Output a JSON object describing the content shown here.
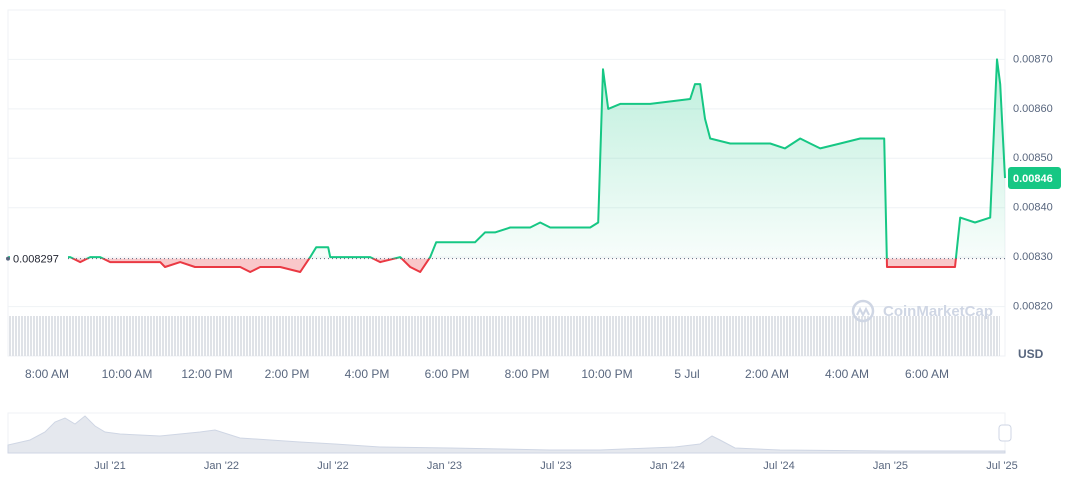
{
  "chart_data": {
    "type": "line",
    "x": [
      7.03,
      8.58,
      8.83,
      9.08,
      9.33,
      9.58,
      10.08,
      10.83,
      10.95,
      11.33,
      11.7,
      12.83,
      13.08,
      13.33,
      13.83,
      14.33,
      14.58,
      14.73,
      15.03,
      15.08,
      16.08,
      16.33,
      16.83,
      17.08,
      17.33,
      17.58,
      17.73,
      17.95,
      18.7,
      18.95,
      19.2,
      19.58,
      20.08,
      20.33,
      20.58,
      21.08,
      21.58,
      21.78,
      21.9,
      22.03,
      22.33,
      23.08,
      24.08,
      24.2,
      24.33,
      24.45,
      24.58,
      25.08,
      26.08,
      26.45,
      26.83,
      27.08,
      27.33,
      27.83,
      28.33,
      28.93,
      29.0,
      29.33,
      30.58,
      30.7,
      30.83,
      31.2,
      31.58,
      31.75,
      31.83,
      31.95
    ],
    "series": [
      {
        "color": "#16c784",
        "color_below": "#ea3943",
        "values": [
          0.0083,
          0.0083,
          0.00829,
          0.0083,
          0.0083,
          0.00829,
          0.00829,
          0.00829,
          0.00828,
          0.00829,
          0.00828,
          0.00828,
          0.00827,
          0.00828,
          0.00828,
          0.00827,
          0.0083,
          0.00832,
          0.00832,
          0.0083,
          0.0083,
          0.00829,
          0.0083,
          0.00828,
          0.00827,
          0.0083,
          0.00833,
          0.00833,
          0.00833,
          0.00835,
          0.00835,
          0.00836,
          0.00836,
          0.00837,
          0.00836,
          0.00836,
          0.00836,
          0.00837,
          0.00868,
          0.0086,
          0.00861,
          0.00861,
          0.00862,
          0.00865,
          0.00865,
          0.00858,
          0.00854,
          0.00853,
          0.00853,
          0.00852,
          0.00854,
          0.00853,
          0.00852,
          0.00853,
          0.00854,
          0.00854,
          0.00828,
          0.00828,
          0.00828,
          0.00828,
          0.00838,
          0.00837,
          0.00838,
          0.0087,
          0.00865,
          0.00846
        ]
      }
    ],
    "xlim": [
      7.025,
      31.95
    ],
    "xticks": [
      {
        "value": 8,
        "label": "8:00 AM"
      },
      {
        "value": 10,
        "label": "10:00 AM"
      },
      {
        "value": 12,
        "label": "12:00 PM"
      },
      {
        "value": 14,
        "label": "2:00 PM"
      },
      {
        "value": 16,
        "label": "4:00 PM"
      },
      {
        "value": 18,
        "label": "6:00 PM"
      },
      {
        "value": 20,
        "label": "8:00 PM"
      },
      {
        "value": 22,
        "label": "10:00 PM"
      },
      {
        "value": 24,
        "label": "5 Jul"
      },
      {
        "value": 26,
        "label": "2:00 AM"
      },
      {
        "value": 28,
        "label": "4:00 AM"
      },
      {
        "value": 30,
        "label": "6:00 AM"
      }
    ],
    "ylim": [
      0.0081,
      0.0088
    ],
    "yticks": [
      {
        "value": 0.0082,
        "label": "0.00820"
      },
      {
        "value": 0.0083,
        "label": "0.00830"
      },
      {
        "value": 0.0084,
        "label": "0.00840"
      },
      {
        "value": 0.0085,
        "label": "0.00850"
      },
      {
        "value": 0.0086,
        "label": "0.00860"
      },
      {
        "value": 0.0087,
        "label": "0.00870"
      }
    ],
    "grid": true,
    "baseline": 0.008297,
    "last_price": 0.00846,
    "currency": "USD",
    "watermark": "CoinMarketCap",
    "navigator_labels": [
      "Jul '21",
      "Jan '22",
      "Jul '22",
      "Jan '23",
      "Jul '23",
      "Jan '24",
      "Jul '24",
      "Jan '25",
      "Jul '25"
    ]
  }
}
